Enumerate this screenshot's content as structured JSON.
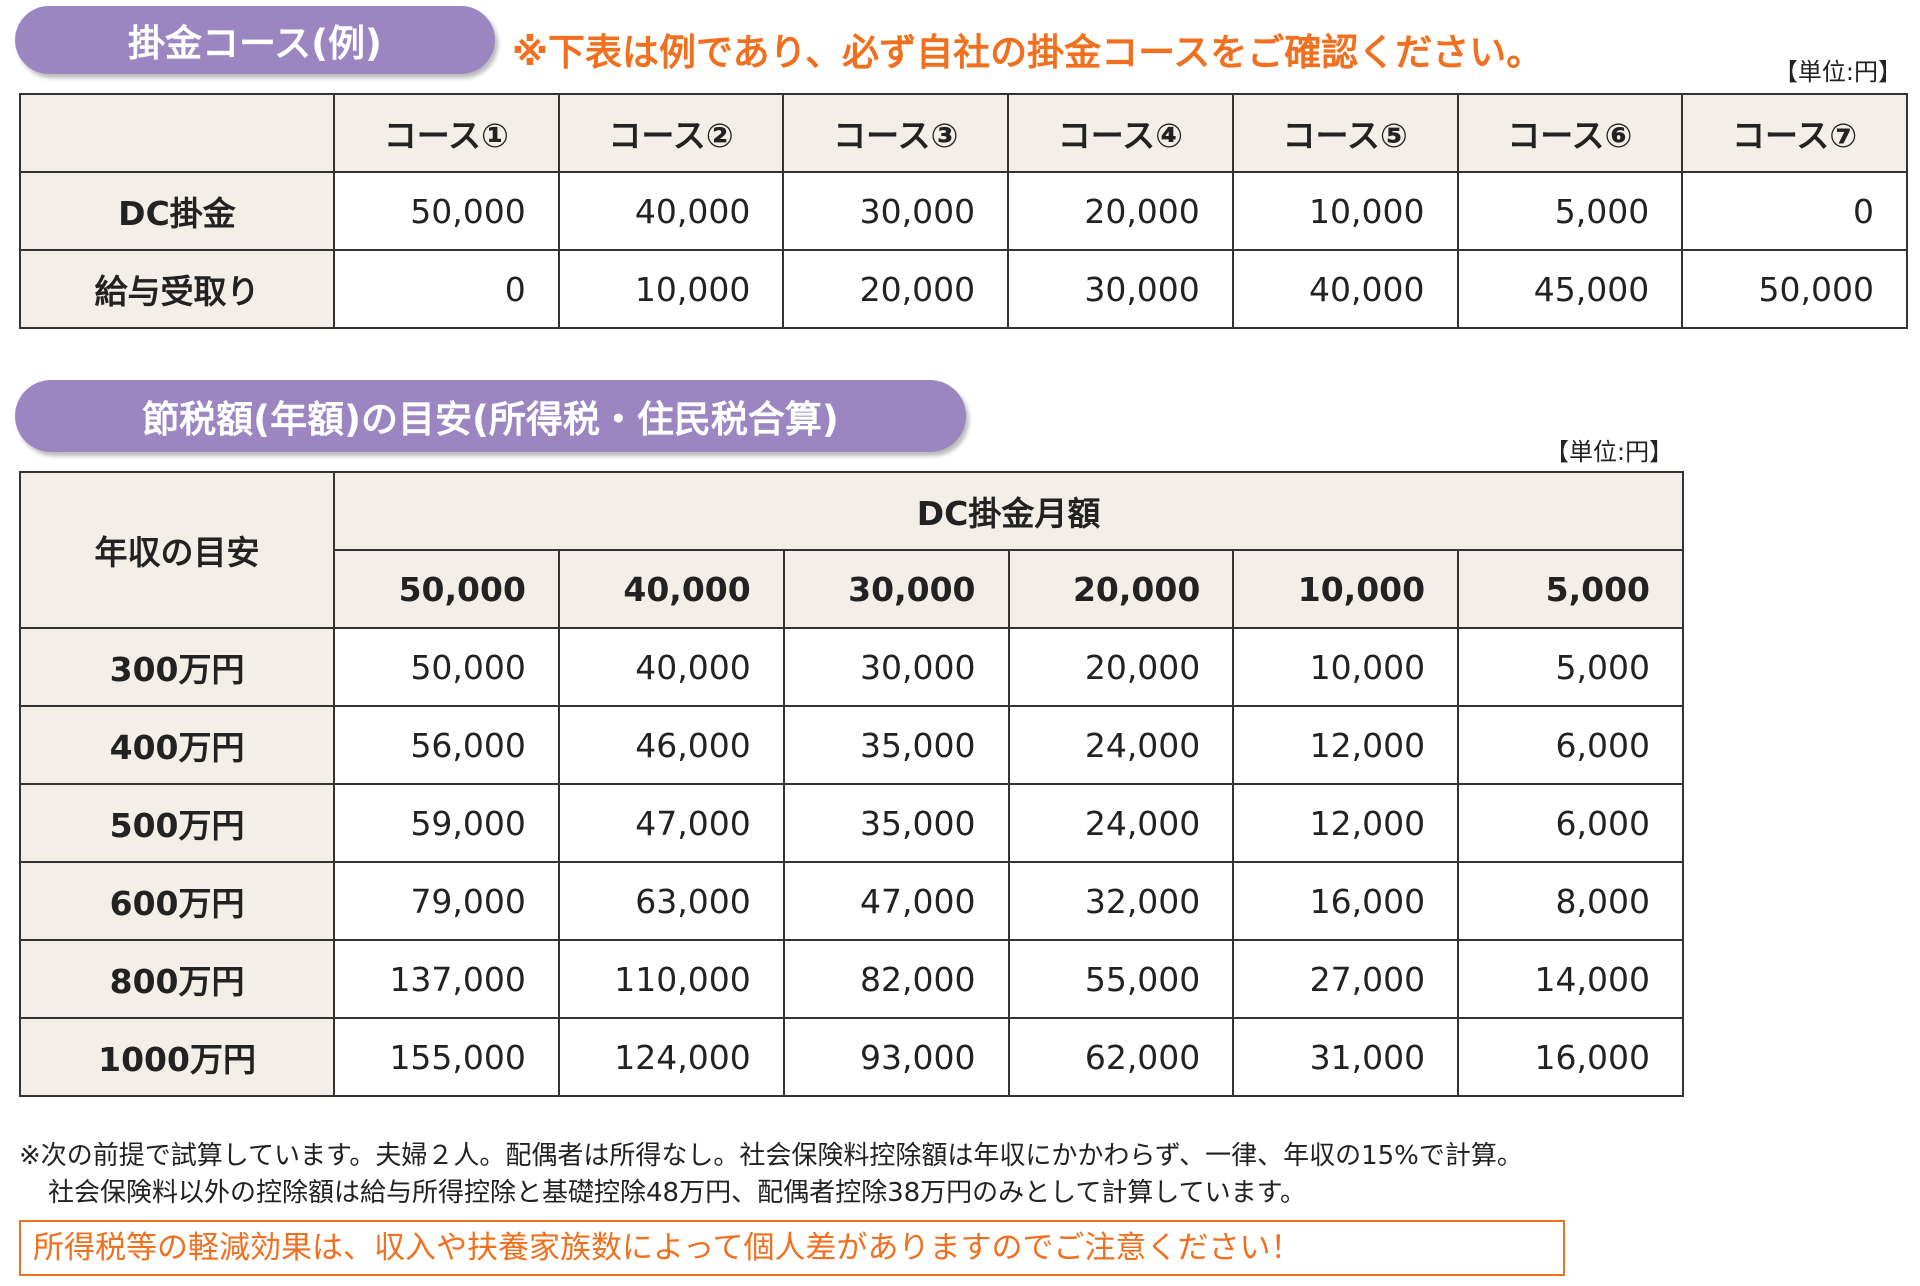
{
  "section1": {
    "title": "掛金コース(例)",
    "notice": "※下表は例であり、必ず自社の掛金コースをご確認ください。",
    "unit": "【単位:円】",
    "table": {
      "columns": [
        "コース①",
        "コース②",
        "コース③",
        "コース④",
        "コース⑤",
        "コース⑥",
        "コース⑦"
      ],
      "rows": [
        {
          "label": "DC掛金",
          "cells": [
            "50,000",
            "40,000",
            "30,000",
            "20,000",
            "10,000",
            "5,000",
            "0"
          ]
        },
        {
          "label": "給与受取り",
          "cells": [
            "0",
            "10,000",
            "20,000",
            "30,000",
            "40,000",
            "45,000",
            "50,000"
          ]
        }
      ]
    }
  },
  "section2": {
    "title": "節税額(年額)の目安(所得税・住民税合算)",
    "unit": "【単位:円】",
    "table": {
      "corner": "年収の目安",
      "group": "DC掛金月額",
      "columns": [
        "50,000",
        "40,000",
        "30,000",
        "20,000",
        "10,000",
        "5,000"
      ],
      "rows": [
        {
          "label": "300万円",
          "cells": [
            "50,000",
            "40,000",
            "30,000",
            "20,000",
            "10,000",
            "5,000"
          ]
        },
        {
          "label": "400万円",
          "cells": [
            "56,000",
            "46,000",
            "35,000",
            "24,000",
            "12,000",
            "6,000"
          ]
        },
        {
          "label": "500万円",
          "cells": [
            "59,000",
            "47,000",
            "35,000",
            "24,000",
            "12,000",
            "6,000"
          ]
        },
        {
          "label": "600万円",
          "cells": [
            "79,000",
            "63,000",
            "47,000",
            "32,000",
            "16,000",
            "8,000"
          ]
        },
        {
          "label": "800万円",
          "cells": [
            "137,000",
            "110,000",
            "82,000",
            "55,000",
            "27,000",
            "14,000"
          ]
        },
        {
          "label": "1000万円",
          "cells": [
            "155,000",
            "124,000",
            "93,000",
            "62,000",
            "31,000",
            "16,000"
          ]
        }
      ]
    }
  },
  "notes": [
    "※次の前提で試算しています。夫婦２人。配偶者は所得なし。社会保険料控除額は年収にかかわらず、一律、年収の15%で計算。",
    "社会保険料以外の控除額は給与所得控除と基礎控除48万円、配偶者控除38万円のみとして計算しています。"
  ],
  "warning": "所得税等の軽減効果は、収入や扶養家族数によって個人差がありますのでご注意ください！"
}
